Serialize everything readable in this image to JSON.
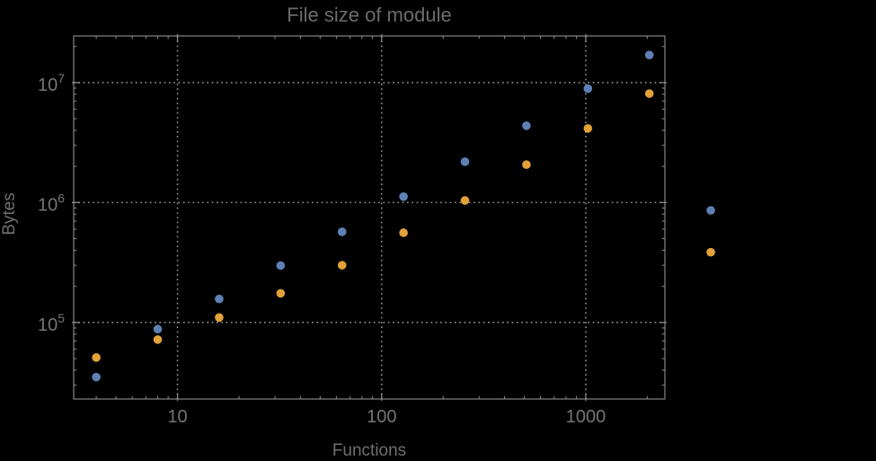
{
  "colors": {
    "background": "#000000",
    "frame": "#858585",
    "grid": "#8e8e8e",
    "tick": "#8a8a8a",
    "title_text": "#6c6c6c",
    "label_text": "#6f6f6f",
    "tick_text": "#757575"
  },
  "chart_data": {
    "type": "scatter",
    "title": "File size of module",
    "xlabel": "Functions",
    "ylabel": "Bytes",
    "xscale": "log",
    "yscale": "log",
    "grid": "dotted",
    "legend": "none",
    "xlim": [
      3.1,
      2440
    ],
    "ylim": [
      23000,
      24500000
    ],
    "xticks_major": [
      10,
      100,
      1000
    ],
    "xtick_labels": [
      "10",
      "100",
      "1000"
    ],
    "yticks_major": [
      100000,
      1000000,
      10000000
    ],
    "ytick_labels": [
      "10^5",
      "10^6",
      "10^7"
    ],
    "x": [
      4,
      8,
      16,
      32,
      64,
      128,
      256,
      512,
      1024,
      2048,
      4096
    ],
    "series": [
      {
        "name": "series-blue",
        "color": "#5e81b5",
        "values": [
          35000,
          88000,
          157000,
          298000,
          570000,
          1120000,
          2190000,
          4370000,
          8900000,
          17000000,
          860000
        ]
      },
      {
        "name": "series-orange",
        "color": "#e2a238",
        "values": [
          51000,
          72000,
          110000,
          175000,
          300000,
          560000,
          1040000,
          2070000,
          4150000,
          8100000,
          385000
        ]
      }
    ],
    "point_radius_px": 4.8
  }
}
